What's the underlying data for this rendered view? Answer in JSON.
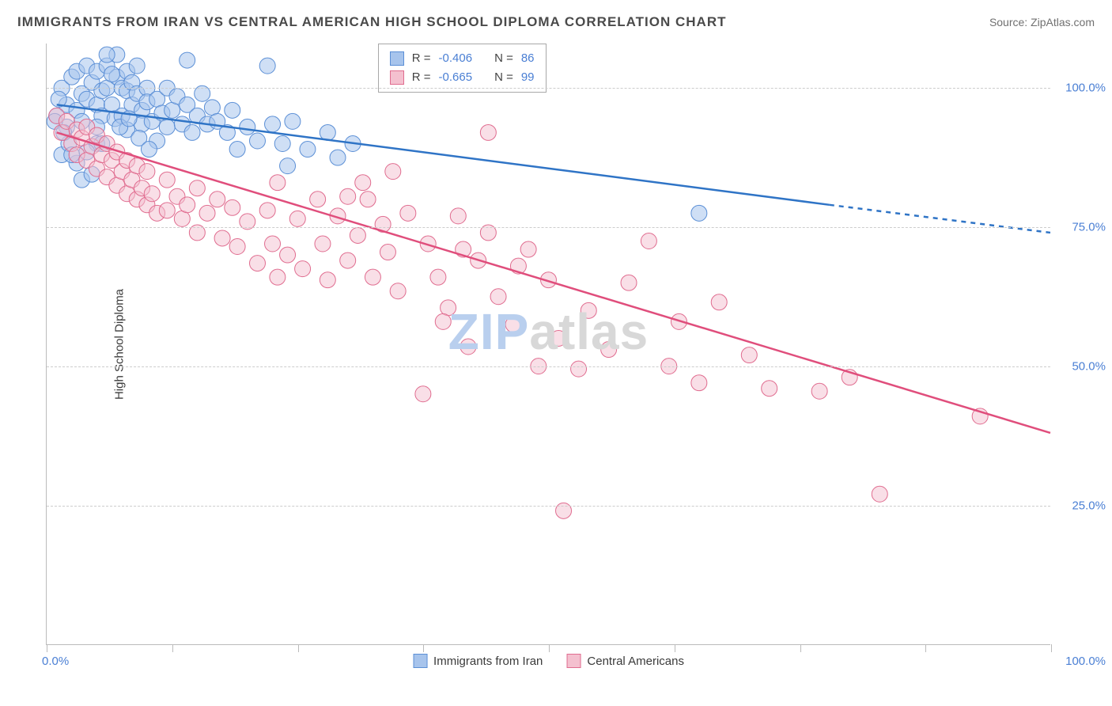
{
  "title": "IMMIGRANTS FROM IRAN VS CENTRAL AMERICAN HIGH SCHOOL DIPLOMA CORRELATION CHART",
  "source_label": "Source:",
  "source_value": "ZipAtlas.com",
  "y_axis_label": "High School Diploma",
  "watermark": {
    "part1": "ZIP",
    "part2": "atlas"
  },
  "chart": {
    "type": "scatter",
    "background_color": "#ffffff",
    "grid_color": "#cccccc",
    "axis_color": "#bbbbbb",
    "tick_label_color": "#4a7fd4",
    "xlim": [
      0,
      100
    ],
    "ylim": [
      0,
      108
    ],
    "x_ticks": [
      0,
      12.5,
      25,
      37.5,
      50,
      62.5,
      75,
      87.5,
      100
    ],
    "x_tick_labels": {
      "0": "0.0%",
      "100": "100.0%"
    },
    "y_gridlines": [
      25,
      50,
      75,
      100
    ],
    "y_tick_labels": {
      "25": "25.0%",
      "50": "50.0%",
      "75": "75.0%",
      "100": "100.0%"
    },
    "legend": {
      "series1_label": "Immigrants from Iran",
      "series2_label": "Central Americans"
    },
    "stats_box": {
      "left_pct": 33,
      "top_pct": 0,
      "rows": [
        {
          "swatch_fill": "#a7c4ec",
          "swatch_stroke": "#5b8fd6",
          "r_label": "R =",
          "r_value": "-0.406",
          "n_label": "N =",
          "n_value": "86"
        },
        {
          "swatch_fill": "#f4c0cf",
          "swatch_stroke": "#e06c8f",
          "r_label": "R =",
          "r_value": "-0.665",
          "n_label": "N =",
          "n_value": "99"
        }
      ]
    },
    "series": [
      {
        "name": "Immigrants from Iran",
        "color_fill": "#a7c4ec",
        "color_stroke": "#5b8fd6",
        "fill_opacity": 0.55,
        "marker_radius": 10,
        "trend": {
          "color": "#2f74c6",
          "width": 2.5,
          "x1": 1,
          "y1": 97,
          "x2": 78,
          "y2": 79,
          "dash_x2": 100,
          "dash_y2": 74
        },
        "points": [
          [
            1,
            95
          ],
          [
            1.5,
            100
          ],
          [
            2,
            97
          ],
          [
            2,
            93
          ],
          [
            2.5,
            102
          ],
          [
            3,
            103
          ],
          [
            3,
            96
          ],
          [
            3.5,
            99
          ],
          [
            3.5,
            94
          ],
          [
            4,
            104
          ],
          [
            4,
            98
          ],
          [
            4.5,
            101
          ],
          [
            5,
            103
          ],
          [
            5,
            97
          ],
          [
            5,
            90
          ],
          [
            5.5,
            99.5
          ],
          [
            5.5,
            95
          ],
          [
            6,
            104
          ],
          [
            6,
            100
          ],
          [
            6.5,
            97
          ],
          [
            6.8,
            94.5
          ],
          [
            7,
            106
          ],
          [
            7,
            102
          ],
          [
            7.5,
            100
          ],
          [
            7.5,
            95
          ],
          [
            8,
            103
          ],
          [
            8,
            99.5
          ],
          [
            8,
            92.5
          ],
          [
            8.5,
            97
          ],
          [
            8.5,
            101
          ],
          [
            9,
            104
          ],
          [
            9,
            99
          ],
          [
            9.5,
            96
          ],
          [
            9.5,
            93.5
          ],
          [
            10,
            100
          ],
          [
            10,
            97.5
          ],
          [
            10.5,
            94
          ],
          [
            11,
            98
          ],
          [
            11,
            90.5
          ],
          [
            11.5,
            95.5
          ],
          [
            12,
            100
          ],
          [
            12,
            93
          ],
          [
            12.5,
            96
          ],
          [
            13,
            98.5
          ],
          [
            13.5,
            93.5
          ],
          [
            14,
            105
          ],
          [
            14,
            97
          ],
          [
            14.5,
            92
          ],
          [
            15,
            95
          ],
          [
            15.5,
            99
          ],
          [
            16,
            93.5
          ],
          [
            16.5,
            96.5
          ],
          [
            17,
            94
          ],
          [
            18,
            92
          ],
          [
            18.5,
            96
          ],
          [
            19,
            89
          ],
          [
            20,
            93
          ],
          [
            21,
            90.5
          ],
          [
            22,
            104
          ],
          [
            22.5,
            93.5
          ],
          [
            23.5,
            90
          ],
          [
            24,
            86
          ],
          [
            24.5,
            94
          ],
          [
            26,
            89
          ],
          [
            28,
            92
          ],
          [
            29,
            87.5
          ],
          [
            30.5,
            90
          ],
          [
            1.5,
            88
          ],
          [
            2.2,
            90
          ],
          [
            3,
            86.5
          ],
          [
            3.5,
            83.5
          ],
          [
            4,
            88.5
          ],
          [
            4.5,
            84.5
          ],
          [
            5,
            93
          ],
          [
            5.5,
            90
          ],
          [
            0.8,
            94
          ],
          [
            1.2,
            98
          ],
          [
            1.7,
            92
          ],
          [
            2.5,
            88
          ],
          [
            6,
            106
          ],
          [
            65,
            77.5
          ],
          [
            6.5,
            102.5
          ],
          [
            7.3,
            93
          ],
          [
            8.2,
            94.5
          ],
          [
            9.2,
            91
          ],
          [
            10.2,
            89
          ]
        ]
      },
      {
        "name": "Central Americans",
        "color_fill": "#f4c0cf",
        "color_stroke": "#e06c8f",
        "fill_opacity": 0.5,
        "marker_radius": 10,
        "trend": {
          "color": "#e04e7c",
          "width": 2.5,
          "x1": 1,
          "y1": 92,
          "x2": 100,
          "y2": 38,
          "dash_x2": null,
          "dash_y2": null
        },
        "points": [
          [
            1,
            95
          ],
          [
            1.5,
            92
          ],
          [
            2,
            94
          ],
          [
            2.5,
            90
          ],
          [
            3,
            92.5
          ],
          [
            3,
            88
          ],
          [
            3.5,
            91
          ],
          [
            4,
            93
          ],
          [
            4,
            87
          ],
          [
            4.5,
            89.5
          ],
          [
            5,
            91.5
          ],
          [
            5,
            85.5
          ],
          [
            5.5,
            88
          ],
          [
            6,
            90
          ],
          [
            6,
            84
          ],
          [
            6.5,
            87
          ],
          [
            7,
            88.5
          ],
          [
            7,
            82.5
          ],
          [
            7.5,
            85
          ],
          [
            8,
            87
          ],
          [
            8,
            81
          ],
          [
            8.5,
            83.5
          ],
          [
            9,
            86
          ],
          [
            9,
            80
          ],
          [
            9.5,
            82
          ],
          [
            10,
            85
          ],
          [
            10,
            79
          ],
          [
            10.5,
            81
          ],
          [
            11,
            77.5
          ],
          [
            12,
            83.5
          ],
          [
            12,
            78
          ],
          [
            13,
            80.5
          ],
          [
            13.5,
            76.5
          ],
          [
            14,
            79
          ],
          [
            15,
            82
          ],
          [
            15,
            74
          ],
          [
            16,
            77.5
          ],
          [
            17,
            80
          ],
          [
            17.5,
            73
          ],
          [
            18.5,
            78.5
          ],
          [
            19,
            71.5
          ],
          [
            20,
            76
          ],
          [
            21,
            68.5
          ],
          [
            22,
            78
          ],
          [
            22.5,
            72
          ],
          [
            23,
            83
          ],
          [
            24,
            70
          ],
          [
            25,
            76.5
          ],
          [
            25.5,
            67.5
          ],
          [
            27,
            80
          ],
          [
            27.5,
            72
          ],
          [
            28,
            65.5
          ],
          [
            29,
            77
          ],
          [
            30,
            80.5
          ],
          [
            30,
            69
          ],
          [
            31,
            73.5
          ],
          [
            32,
            80
          ],
          [
            32.5,
            66
          ],
          [
            33.5,
            75.5
          ],
          [
            34,
            70.5
          ],
          [
            35,
            63.5
          ],
          [
            36,
            77.5
          ],
          [
            37.5,
            45
          ],
          [
            38,
            72
          ],
          [
            39,
            66
          ],
          [
            40,
            60.5
          ],
          [
            41,
            77
          ],
          [
            42,
            53.5
          ],
          [
            43,
            69
          ],
          [
            44,
            74
          ],
          [
            44,
            92
          ],
          [
            45,
            62.5
          ],
          [
            46.5,
            57.5
          ],
          [
            48,
            71
          ],
          [
            49,
            50
          ],
          [
            50,
            65.5
          ],
          [
            51,
            55
          ],
          [
            51.5,
            24
          ],
          [
            53,
            49.5
          ],
          [
            54,
            60
          ],
          [
            56,
            53
          ],
          [
            58,
            65
          ],
          [
            60,
            72.5
          ],
          [
            62,
            50
          ],
          [
            63,
            58
          ],
          [
            65,
            47
          ],
          [
            67,
            61.5
          ],
          [
            70,
            52
          ],
          [
            72,
            46
          ],
          [
            77,
            45.5
          ],
          [
            80,
            48
          ],
          [
            83,
            27
          ],
          [
            93,
            41
          ],
          [
            39.5,
            58
          ],
          [
            41.5,
            71
          ],
          [
            47,
            68
          ],
          [
            31.5,
            83
          ],
          [
            34.5,
            85
          ],
          [
            23,
            66
          ]
        ]
      }
    ]
  }
}
